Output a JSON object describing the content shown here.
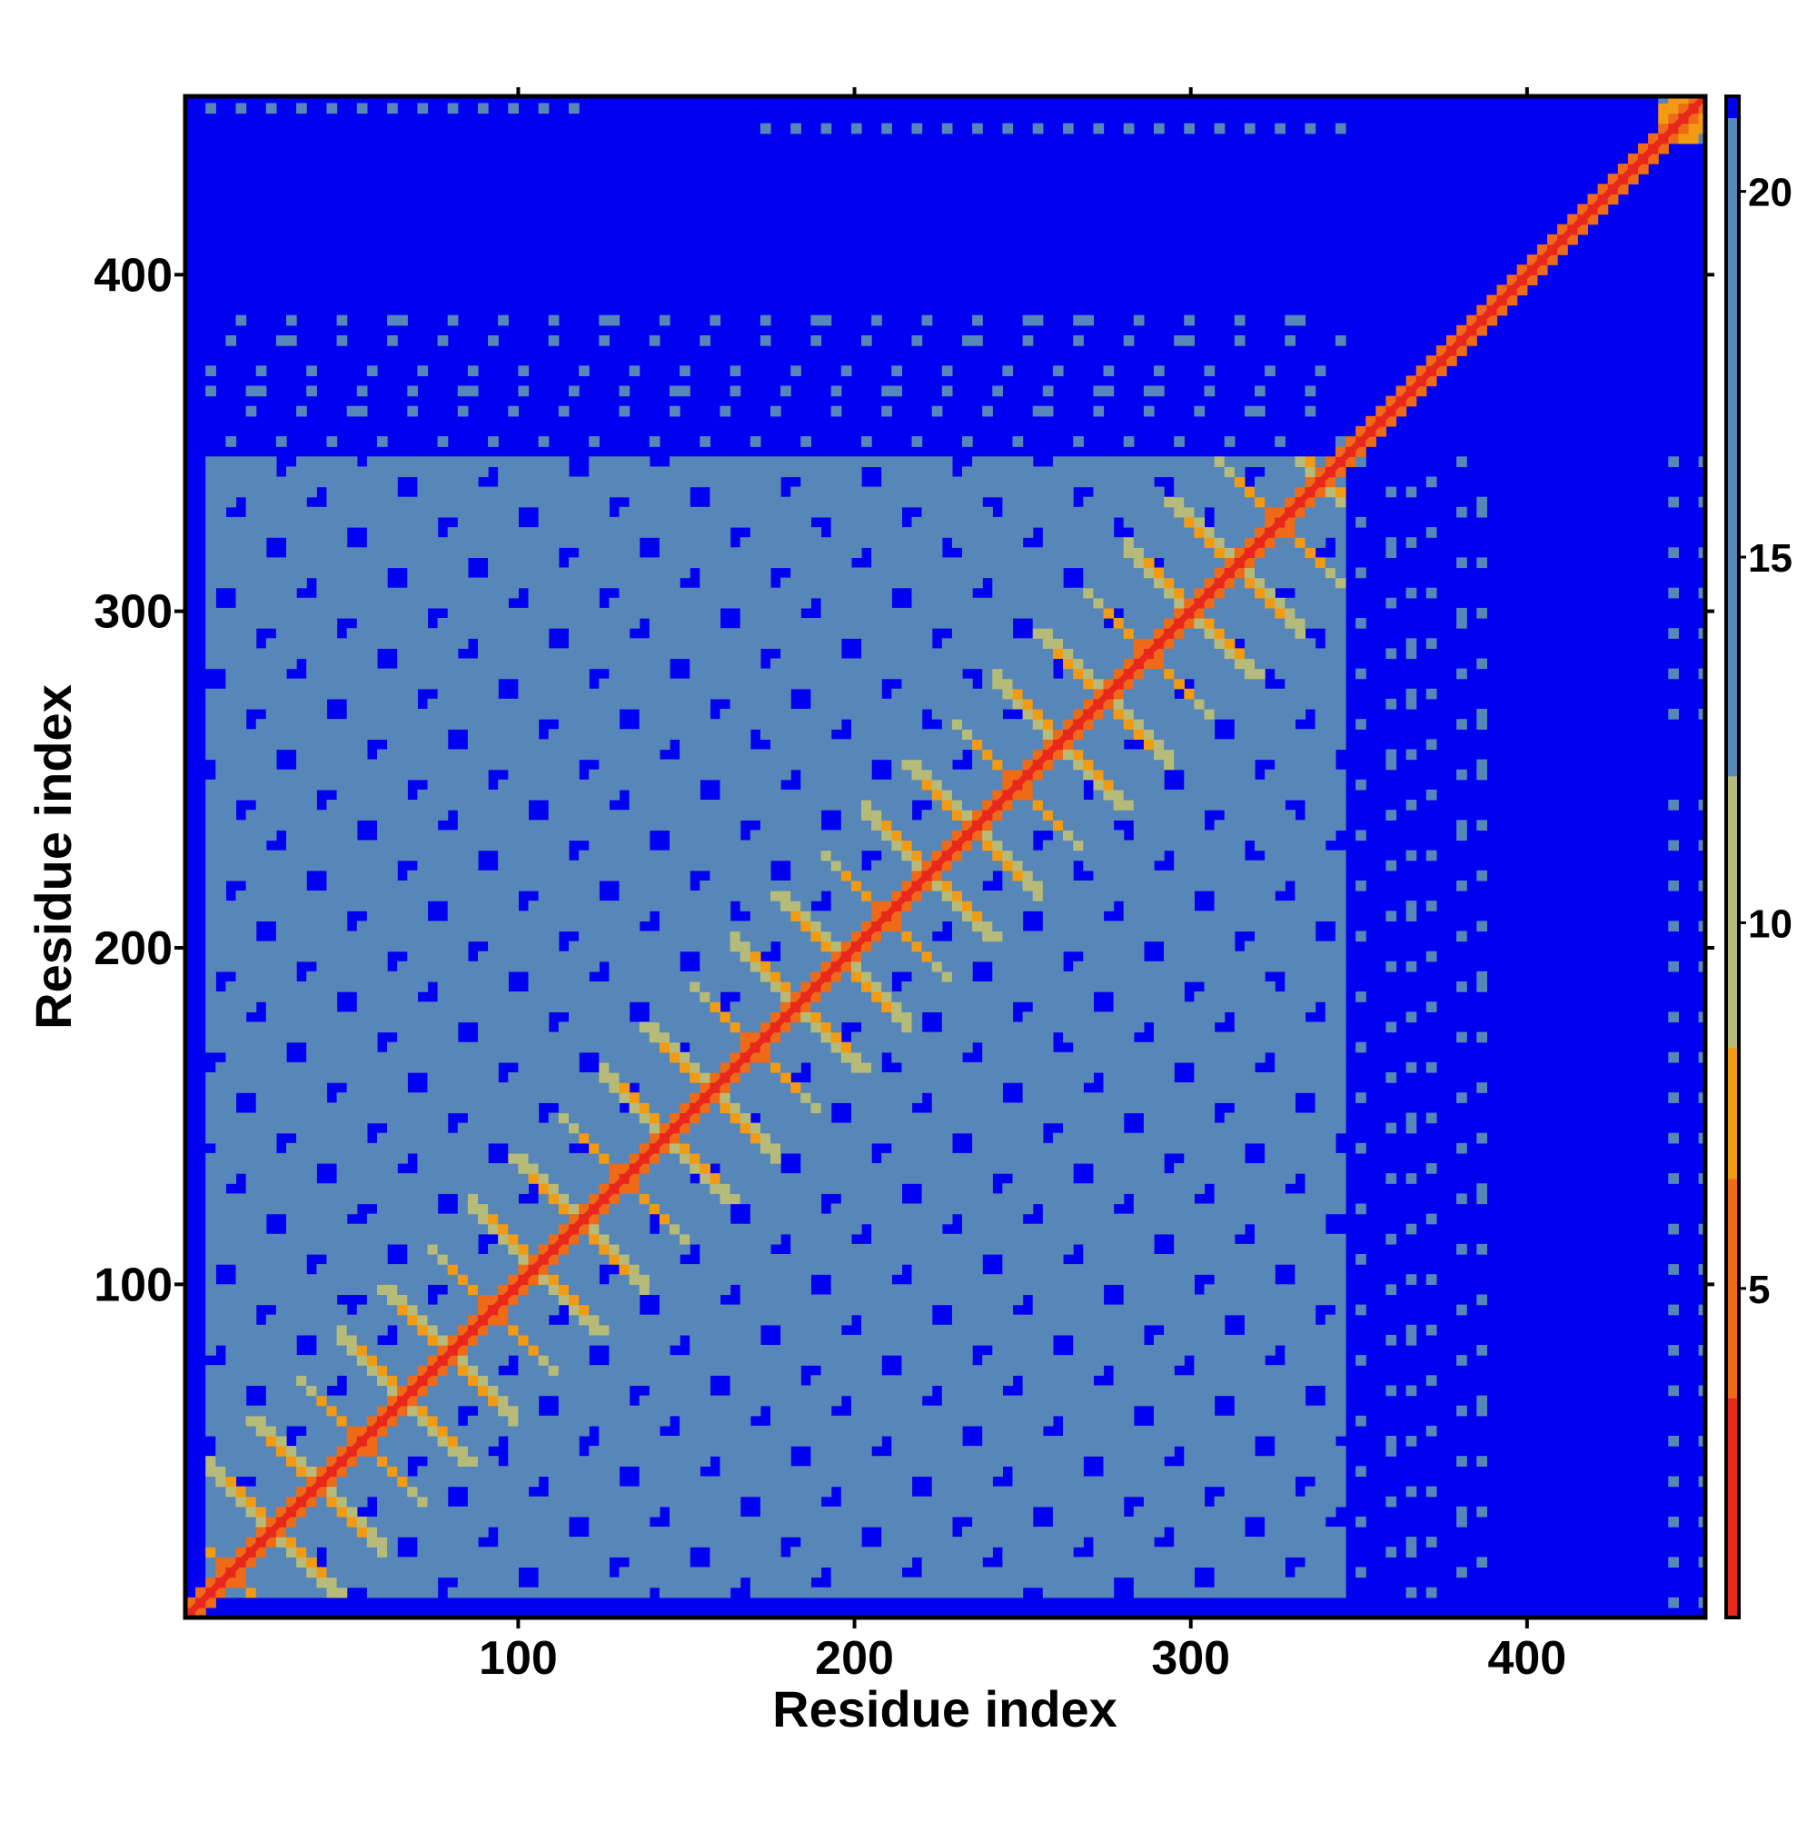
{
  "chart_data": {
    "type": "heatmap",
    "title": "",
    "xlabel": "Residue index",
    "ylabel": "Residue index",
    "xlim": [
      1,
      453
    ],
    "ylim": [
      1,
      453
    ],
    "x_ticks": [
      100,
      200,
      300,
      400
    ],
    "y_ticks": [
      100,
      200,
      300,
      400
    ],
    "colorbar": {
      "ticks": [
        5,
        10,
        15,
        20
      ],
      "range": [
        0.5,
        21.3
      ],
      "colors": [
        {
          "from": 0.5,
          "to": 3.5,
          "color": "#e8281c"
        },
        {
          "from": 3.5,
          "to": 6.5,
          "color": "#ef6a16"
        },
        {
          "from": 6.5,
          "to": 8.3,
          "color": "#f29b12"
        },
        {
          "from": 8.3,
          "to": 12.0,
          "color": "#b6bb79"
        },
        {
          "from": 12.0,
          "to": 21.0,
          "color": "#5787b8"
        },
        {
          "from": 21.0,
          "to": 21.3,
          "color": "#0000f2"
        }
      ]
    },
    "value_meaning": "pairwise distance between residues (contact map)",
    "background_color": "#0000f2",
    "diagonal_color": "#e8281c",
    "core_region": [
      5,
      345
    ],
    "secondary_block": [
      437,
      453
    ]
  }
}
